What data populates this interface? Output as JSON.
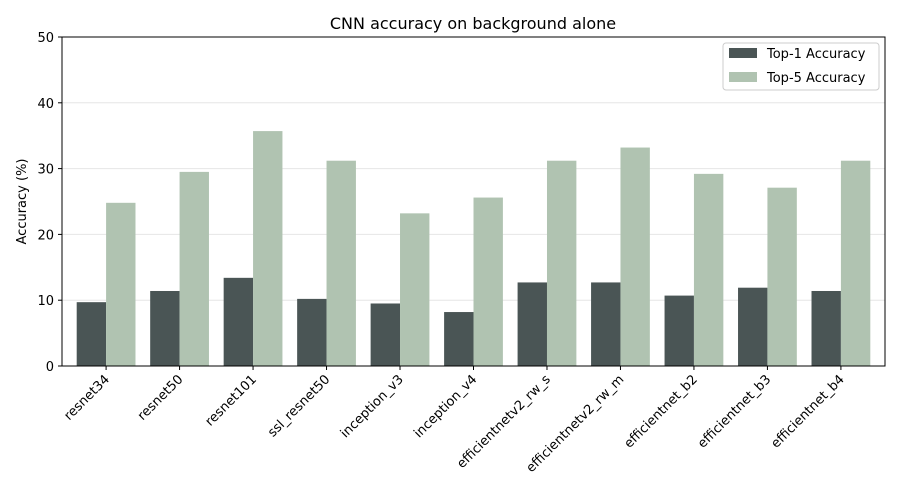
{
  "chart_data": {
    "type": "bar",
    "title": "CNN accuracy on background alone",
    "xlabel": "",
    "ylabel": "Accuracy (%)",
    "ylim": [
      0,
      50
    ],
    "yticks": [
      0,
      10,
      20,
      30,
      40,
      50
    ],
    "grid": "horizontal",
    "legend_position": "top-right",
    "categories": [
      "resnet34",
      "resnet50",
      "resnet101",
      "ssl_resnet50",
      "inception_v3",
      "inception_v4",
      "efficientnetv2_rw_s",
      "efficientnetv2_rw_m",
      "efficientnet_b2",
      "efficientnet_b3",
      "efficientnet_b4"
    ],
    "series": [
      {
        "name": "Top-1 Accuracy",
        "color": "#4a5555",
        "values": [
          9.7,
          11.4,
          13.4,
          10.2,
          9.5,
          8.2,
          12.7,
          12.7,
          10.7,
          11.9,
          11.4
        ]
      },
      {
        "name": "Top-5 Accuracy",
        "color": "#b0c3b1",
        "values": [
          24.8,
          29.5,
          35.7,
          31.2,
          23.2,
          25.6,
          31.2,
          33.2,
          29.2,
          27.1,
          31.2
        ]
      }
    ]
  }
}
